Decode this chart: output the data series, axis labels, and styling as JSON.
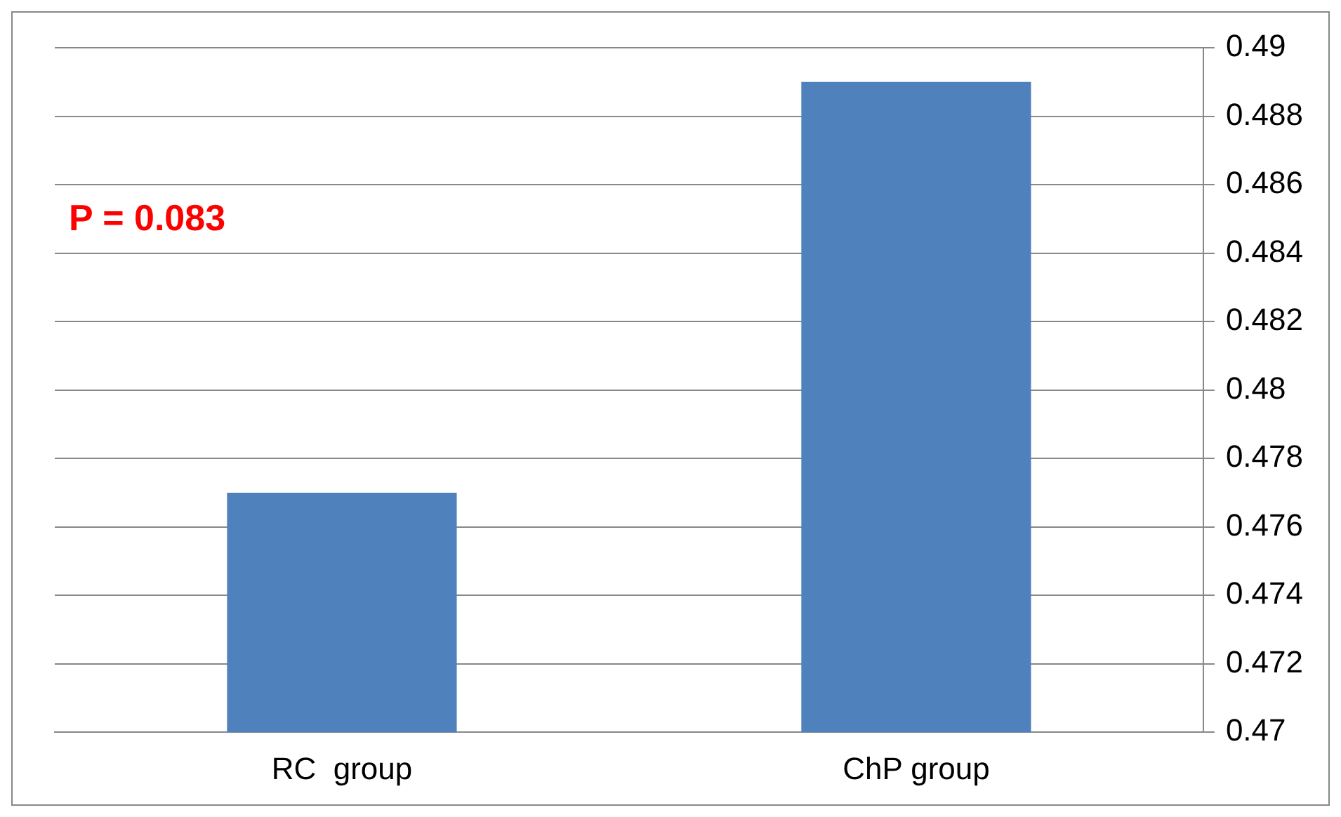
{
  "chart_data": {
    "type": "bar",
    "categories": [
      "RC  group",
      "ChP group"
    ],
    "values": [
      0.477,
      0.489
    ],
    "color": "#4f81bd",
    "ylim": [
      0.47,
      0.49
    ],
    "yticks": [
      0.47,
      0.472,
      0.474,
      0.476,
      0.478,
      0.48,
      0.482,
      0.484,
      0.486,
      0.488,
      0.49
    ],
    "grid": "y",
    "legend": false,
    "annotations": [
      "P = 0.083"
    ]
  }
}
